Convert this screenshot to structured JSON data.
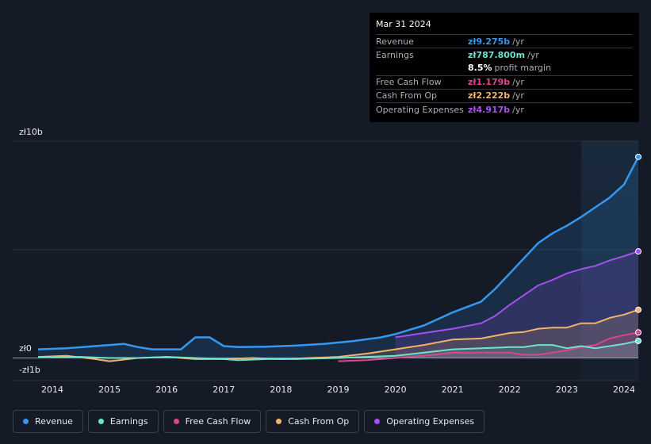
{
  "tooltip": {
    "date": "Mar 31 2024",
    "rows": [
      {
        "label": "Revenue",
        "value": "zł9.275b",
        "unit": "/yr",
        "color": "#3498f0"
      },
      {
        "label": "Earnings",
        "value": "zł787.800m",
        "unit": "/yr",
        "color": "#6de3cf"
      },
      {
        "label": "",
        "value": "8.5%",
        "unit": "profit margin",
        "color": "#ffffff"
      },
      {
        "label": "Free Cash Flow",
        "value": "zł1.179b",
        "unit": "/yr",
        "color": "#d9478a"
      },
      {
        "label": "Cash From Op",
        "value": "zł2.222b",
        "unit": "/yr",
        "color": "#f2b36a"
      },
      {
        "label": "Operating Expenses",
        "value": "zł4.917b",
        "unit": "/yr",
        "color": "#a64ff0"
      }
    ]
  },
  "legend": {
    "items": [
      {
        "label": "Revenue",
        "color": "#3498f0"
      },
      {
        "label": "Earnings",
        "color": "#6de3cf"
      },
      {
        "label": "Free Cash Flow",
        "color": "#d9478a"
      },
      {
        "label": "Cash From Op",
        "color": "#f2b36a"
      },
      {
        "label": "Operating Expenses",
        "color": "#a64ff0"
      }
    ]
  },
  "chart_data": {
    "type": "line",
    "y_axis_labels": {
      "top": "zł10b",
      "zero": "zł0",
      "bottom": "-zł1b"
    },
    "ylim": [
      -1,
      10
    ],
    "xlim": [
      2013.75,
      2024.25
    ],
    "x_ticks": [
      "2014",
      "2015",
      "2016",
      "2017",
      "2018",
      "2019",
      "2020",
      "2021",
      "2022",
      "2023",
      "2024"
    ],
    "forecast_start": 2023.25,
    "series": [
      {
        "name": "Revenue",
        "color": "#3498f0",
        "fill": true,
        "points": [
          [
            2013.75,
            0.4
          ],
          [
            2014.25,
            0.45
          ],
          [
            2014.75,
            0.55
          ],
          [
            2015.25,
            0.65
          ],
          [
            2015.5,
            0.5
          ],
          [
            2015.75,
            0.4
          ],
          [
            2016.25,
            0.4
          ],
          [
            2016.5,
            0.95
          ],
          [
            2016.75,
            0.95
          ],
          [
            2017.0,
            0.55
          ],
          [
            2017.25,
            0.5
          ],
          [
            2017.75,
            0.52
          ],
          [
            2018.25,
            0.57
          ],
          [
            2018.75,
            0.65
          ],
          [
            2019.25,
            0.78
          ],
          [
            2019.75,
            0.95
          ],
          [
            2020.0,
            1.1
          ],
          [
            2020.5,
            1.5
          ],
          [
            2021.0,
            2.1
          ],
          [
            2021.5,
            2.6
          ],
          [
            2021.75,
            3.2
          ],
          [
            2022.25,
            4.6
          ],
          [
            2022.5,
            5.3
          ],
          [
            2022.75,
            5.75
          ],
          [
            2023.0,
            6.1
          ],
          [
            2023.25,
            6.5
          ],
          [
            2023.5,
            6.95
          ],
          [
            2023.75,
            7.4
          ],
          [
            2024.0,
            8.0
          ],
          [
            2024.25,
            9.275
          ]
        ]
      },
      {
        "name": "Operating Expenses",
        "color": "#a64ff0",
        "fill": true,
        "points": [
          [
            2020.0,
            0.95
          ],
          [
            2020.5,
            1.15
          ],
          [
            2021.0,
            1.35
          ],
          [
            2021.5,
            1.6
          ],
          [
            2021.75,
            1.95
          ],
          [
            2022.0,
            2.45
          ],
          [
            2022.5,
            3.35
          ],
          [
            2022.75,
            3.6
          ],
          [
            2023.0,
            3.9
          ],
          [
            2023.25,
            4.1
          ],
          [
            2023.5,
            4.25
          ],
          [
            2023.75,
            4.5
          ],
          [
            2024.0,
            4.7
          ],
          [
            2024.25,
            4.917
          ]
        ]
      },
      {
        "name": "Cash From Op",
        "color": "#f2b36a",
        "fill": true,
        "points": [
          [
            2013.75,
            0.05
          ],
          [
            2014.25,
            0.1
          ],
          [
            2014.75,
            -0.05
          ],
          [
            2015.0,
            -0.15
          ],
          [
            2015.5,
            0.0
          ],
          [
            2016.0,
            0.05
          ],
          [
            2016.5,
            -0.05
          ],
          [
            2017.0,
            -0.05
          ],
          [
            2017.5,
            0.0
          ],
          [
            2018.0,
            -0.05
          ],
          [
            2018.5,
            0.0
          ],
          [
            2019.0,
            0.05
          ],
          [
            2019.5,
            0.2
          ],
          [
            2020.0,
            0.4
          ],
          [
            2020.5,
            0.6
          ],
          [
            2021.0,
            0.85
          ],
          [
            2021.5,
            0.9
          ],
          [
            2022.0,
            1.15
          ],
          [
            2022.25,
            1.2
          ],
          [
            2022.5,
            1.35
          ],
          [
            2022.75,
            1.4
          ],
          [
            2023.0,
            1.4
          ],
          [
            2023.25,
            1.6
          ],
          [
            2023.5,
            1.6
          ],
          [
            2023.75,
            1.85
          ],
          [
            2024.0,
            2.0
          ],
          [
            2024.25,
            2.222
          ]
        ]
      },
      {
        "name": "Free Cash Flow",
        "color": "#d9478a",
        "fill": true,
        "points": [
          [
            2019.0,
            -0.15
          ],
          [
            2019.5,
            -0.1
          ],
          [
            2020.0,
            0.0
          ],
          [
            2020.5,
            0.1
          ],
          [
            2021.0,
            0.25
          ],
          [
            2021.5,
            0.25
          ],
          [
            2022.0,
            0.25
          ],
          [
            2022.25,
            0.15
          ],
          [
            2022.5,
            0.15
          ],
          [
            2022.75,
            0.25
          ],
          [
            2023.0,
            0.35
          ],
          [
            2023.25,
            0.5
          ],
          [
            2023.5,
            0.6
          ],
          [
            2023.75,
            0.9
          ],
          [
            2024.0,
            1.05
          ],
          [
            2024.25,
            1.179
          ]
        ]
      },
      {
        "name": "Earnings",
        "color": "#6de3cf",
        "fill": true,
        "points": [
          [
            2013.75,
            0.05
          ],
          [
            2014.5,
            0.05
          ],
          [
            2015.0,
            0.0
          ],
          [
            2015.5,
            0.0
          ],
          [
            2016.0,
            0.05
          ],
          [
            2016.5,
            0.0
          ],
          [
            2017.0,
            -0.05
          ],
          [
            2017.25,
            -0.1
          ],
          [
            2017.75,
            -0.05
          ],
          [
            2018.25,
            -0.05
          ],
          [
            2019.0,
            0.0
          ],
          [
            2019.5,
            0.05
          ],
          [
            2020.0,
            0.1
          ],
          [
            2020.5,
            0.25
          ],
          [
            2021.0,
            0.4
          ],
          [
            2021.5,
            0.45
          ],
          [
            2022.0,
            0.5
          ],
          [
            2022.25,
            0.5
          ],
          [
            2022.5,
            0.6
          ],
          [
            2022.75,
            0.6
          ],
          [
            2023.0,
            0.45
          ],
          [
            2023.25,
            0.55
          ],
          [
            2023.5,
            0.45
          ],
          [
            2023.75,
            0.55
          ],
          [
            2024.0,
            0.65
          ],
          [
            2024.25,
            0.788
          ]
        ]
      }
    ]
  }
}
